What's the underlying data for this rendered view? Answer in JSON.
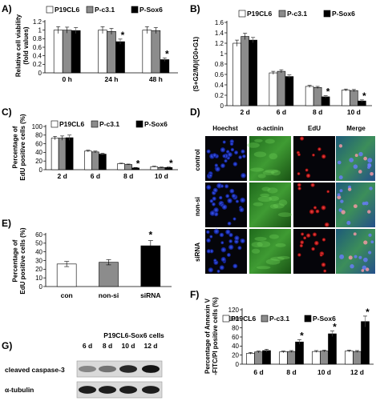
{
  "legend": [
    "P19CL6",
    "P-c3.1",
    "P-Sox6"
  ],
  "colors": {
    "P19CL6": "#ffffff",
    "P-c3.1": "#8c8c8c",
    "P-Sox6": "#000000"
  },
  "chart_data": [
    {
      "panel": "A)",
      "type": "bar",
      "ylabel": [
        "Relative cell viability",
        "(fold values)"
      ],
      "categories": [
        "0 h",
        "24 h",
        "48 h"
      ],
      "ylim": [
        0,
        1.2
      ],
      "yticks": [
        "0",
        "0.2",
        "0.4",
        "0.6",
        "0.8",
        "1",
        "1.2"
      ],
      "ytick_values": [
        0,
        0.2,
        0.4,
        0.6,
        0.8,
        1.0,
        1.2
      ],
      "series": [
        {
          "name": "P19CL6",
          "values": [
            1.0,
            1.0,
            1.0
          ],
          "errors": [
            0.08,
            0.08,
            0.08
          ]
        },
        {
          "name": "P-c3.1",
          "values": [
            1.0,
            0.97,
            0.99
          ],
          "errors": [
            0.07,
            0.07,
            0.07
          ]
        },
        {
          "name": "P-Sox6",
          "values": [
            0.99,
            0.73,
            0.31
          ],
          "errors": [
            0.07,
            0.06,
            0.04
          ]
        }
      ],
      "significant": [
        [],
        [
          2
        ],
        [
          2
        ]
      ],
      "star": "*"
    },
    {
      "panel": "B)",
      "type": "bar",
      "ylabel": [
        "(S+G2/M)/(G0+G1)"
      ],
      "categories": [
        "2 d",
        "6 d",
        "8 d",
        "10 d"
      ],
      "ylim": [
        0,
        1.6
      ],
      "yticks": [
        "0",
        "0.2",
        "0.4",
        "0.6",
        "0.8",
        "1",
        "1.2",
        "1.4",
        "1.6"
      ],
      "ytick_values": [
        0,
        0.2,
        0.4,
        0.6,
        0.8,
        1.0,
        1.2,
        1.4,
        1.6
      ],
      "series": [
        {
          "name": "P19CL6",
          "values": [
            1.2,
            0.63,
            0.37,
            0.3
          ],
          "errors": [
            0.06,
            0.03,
            0.02,
            0.02
          ]
        },
        {
          "name": "P-c3.1",
          "values": [
            1.33,
            0.66,
            0.35,
            0.29
          ],
          "errors": [
            0.06,
            0.03,
            0.02,
            0.02
          ]
        },
        {
          "name": "P-Sox6",
          "values": [
            1.26,
            0.56,
            0.17,
            0.09
          ],
          "errors": [
            0.05,
            0.03,
            0.02,
            0.02
          ]
        }
      ],
      "significant": [
        [],
        [],
        [
          2
        ],
        [
          2
        ]
      ],
      "star": "*"
    },
    {
      "panel": "C)",
      "type": "bar",
      "ylabel": [
        "Percentage of",
        "EdU positive cells (%)"
      ],
      "categories": [
        "2 d",
        "6 d",
        "8 d",
        "10 d"
      ],
      "ylim": [
        0,
        100
      ],
      "yticks": [
        "0",
        "20",
        "40",
        "60",
        "80",
        "100"
      ],
      "ytick_values": [
        0,
        20,
        40,
        60,
        80,
        100
      ],
      "series": [
        {
          "name": "P19CL6",
          "values": [
            73,
            43,
            14,
            7
          ],
          "errors": [
            4,
            2,
            1,
            1
          ]
        },
        {
          "name": "P-c3.1",
          "values": [
            73,
            41,
            12,
            5
          ],
          "errors": [
            5,
            2,
            1,
            1
          ]
        },
        {
          "name": "P-Sox6",
          "values": [
            74,
            36,
            4,
            5
          ],
          "errors": [
            6,
            2,
            1,
            1
          ]
        }
      ],
      "significant": [
        [],
        [],
        [
          2
        ],
        [
          2
        ]
      ],
      "star": "*"
    },
    {
      "panel": "E)",
      "type": "bar",
      "ylabel": [
        "Percentage of",
        "EdU positive cells (%)"
      ],
      "categories": [
        "con",
        "non-si",
        "siRNA"
      ],
      "ylim": [
        0,
        60
      ],
      "yticks": [
        "0",
        "10",
        "20",
        "30",
        "40",
        "50",
        "60"
      ],
      "ytick_values": [
        0,
        10,
        20,
        30,
        40,
        50,
        60
      ],
      "values": [
        26,
        28,
        47
      ],
      "errors": [
        3,
        3,
        6
      ],
      "colors": [
        "#ffffff",
        "#8c8c8c",
        "#000000"
      ],
      "significant": [
        2
      ],
      "star": "*"
    },
    {
      "panel": "F)",
      "type": "bar",
      "ylabel": [
        "Percentage of Annexin V",
        "-FITC/PI positive cells (%)"
      ],
      "categories": [
        "6 d",
        "8 d",
        "10 d",
        "12 d"
      ],
      "ylim": [
        0,
        120
      ],
      "yticks": [
        "0",
        "20",
        "40",
        "60",
        "80",
        "100",
        "120"
      ],
      "ytick_values": [
        0,
        20,
        40,
        60,
        80,
        100,
        120
      ],
      "series": [
        {
          "name": "P19CL6",
          "values": [
            24,
            27,
            28,
            29
          ],
          "errors": [
            2,
            2,
            2,
            2
          ]
        },
        {
          "name": "P-c3.1",
          "values": [
            27,
            28,
            29,
            28
          ],
          "errors": [
            2,
            2,
            2,
            2
          ]
        },
        {
          "name": "P-Sox6",
          "values": [
            30,
            49,
            67,
            94
          ],
          "errors": [
            3,
            5,
            6,
            12
          ]
        }
      ],
      "significant": [
        [],
        [
          2
        ],
        [
          2
        ],
        [
          2
        ]
      ],
      "star": "*"
    }
  ],
  "panel_d": {
    "label": "D)",
    "columns": [
      "Hoechst",
      "α-actinin",
      "EdU",
      "Merge"
    ],
    "rows": [
      "control",
      "non-si",
      "siRNA"
    ]
  },
  "panel_g": {
    "label": "G)",
    "title": "P19CL6-Sox6  cells",
    "lanes": [
      "6 d",
      "8 d",
      "10 d",
      "12 d"
    ],
    "bands": [
      "cleaved caspase-3",
      "α-tubulin"
    ],
    "band_intensity": {
      "cleaved caspase-3": [
        0.35,
        0.45,
        0.85,
        0.95
      ],
      "α-tubulin": [
        0.9,
        0.9,
        0.9,
        0.9
      ]
    }
  }
}
